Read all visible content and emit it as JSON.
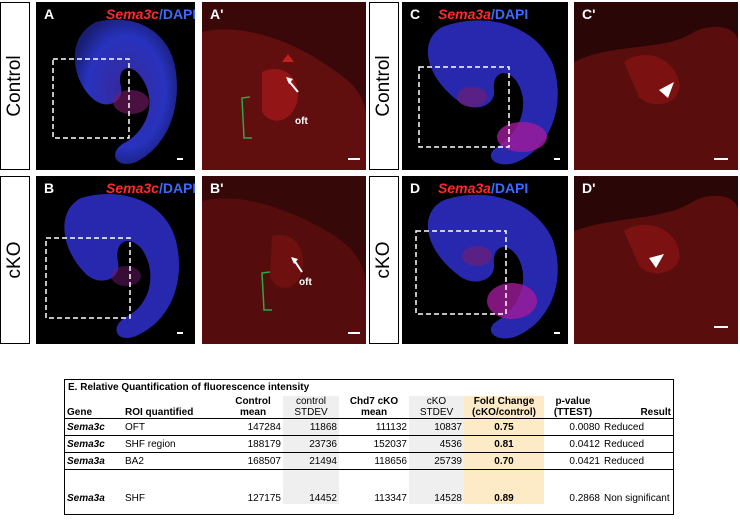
{
  "rows": {
    "control_label": "Control",
    "cko_label": "cKO"
  },
  "panels": {
    "A": {
      "letter": "A",
      "gene": "Sema3c",
      "slash": "/",
      "dapi": "DAPI"
    },
    "A_prime": {
      "letter": "A'",
      "oft_label": "oft"
    },
    "B": {
      "letter": "B",
      "gene": "Sema3c",
      "slash": "/",
      "dapi": "DAPI"
    },
    "B_prime": {
      "letter": "B'",
      "oft_label": "oft"
    },
    "C": {
      "letter": "C",
      "gene": "Sema3a",
      "slash": "/",
      "dapi": "DAPI"
    },
    "C_prime": {
      "letter": "C'"
    },
    "D": {
      "letter": "D",
      "gene": "Sema3a",
      "slash": "/",
      "dapi": "DAPI"
    },
    "D_prime": {
      "letter": "D'"
    }
  },
  "colors": {
    "red_signal": "#ff2a2a",
    "dapi_blue": "#2f3fd6",
    "bracket_green": "#2aa84a",
    "fold_highlight": "#fdebc7",
    "stdev_shade": "#efefef"
  },
  "chart_data": {
    "type": "table",
    "title": "E. Relative Quantification of fluorescence intensity",
    "headers": {
      "gene": "Gene",
      "roi": "ROI quantified",
      "control_mean": "Control mean",
      "control_stdev": "control STDEV",
      "cko_mean": "Chd7 cKO mean",
      "cko_stdev": "cKO STDEV",
      "fold": "Fold Change (cKO/control)",
      "pvalue": "p-value (TTEST)",
      "result": "Result"
    },
    "rows": [
      {
        "gene": "Sema3c",
        "roi": "OFT",
        "control_mean": "147284",
        "control_stdev": "11868",
        "cko_mean": "111132",
        "cko_stdev": "10837",
        "fold": "0.75",
        "pvalue": "0.0080",
        "result": "Reduced"
      },
      {
        "gene": "Sema3c",
        "roi": "SHF region",
        "control_mean": "188179",
        "control_stdev": "23736",
        "cko_mean": "152037",
        "cko_stdev": "4536",
        "fold": "0.81",
        "pvalue": "0.0412",
        "result": "Reduced"
      },
      {
        "gene": "Sema3a",
        "roi": "BA2",
        "control_mean": "168507",
        "control_stdev": "21494",
        "cko_mean": "118656",
        "cko_stdev": "25739",
        "fold": "0.70",
        "pvalue": "0.0421",
        "result": "Reduced"
      },
      {
        "gene": "Sema3a",
        "roi": "SHF",
        "control_mean": "127175",
        "control_stdev": "14452",
        "cko_mean": "113347",
        "cko_stdev": "14528",
        "fold": "0.89",
        "pvalue": "0.2868",
        "result": "Non significant"
      }
    ]
  }
}
